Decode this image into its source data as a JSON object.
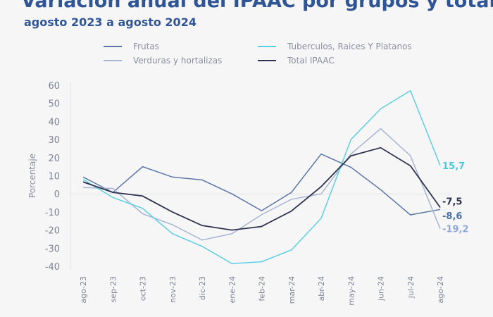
{
  "chart_data": {
    "type": "line",
    "title": "Variación anual del IPAAC por grupos y total",
    "subtitle": "agosto 2023 a agosto 2024",
    "ylabel": "Porcentaje",
    "xlabel": "",
    "ylim": [
      -40,
      60
    ],
    "yticks": [
      60,
      50,
      40,
      30,
      20,
      10,
      0,
      -10,
      -20,
      -30,
      -40
    ],
    "categories": [
      "ago-23",
      "sep-23",
      "oct-23",
      "nov-23",
      "dic-23",
      "ene-24",
      "feb-24",
      "mar-24",
      "abr-24",
      "may-24",
      "jun-24",
      "jul-24",
      "ago-24"
    ],
    "legend_position": "top",
    "grid": false,
    "series": [
      {
        "name": "Frutas",
        "color": "#5b77a6",
        "values": [
          9.3,
          0.8,
          15,
          9.3,
          7.7,
          0,
          -9.3,
          0.8,
          22,
          14.7,
          2.3,
          -11.6,
          -8.6
        ],
        "end_label": "-8,6",
        "label_color": "#4a6fa5"
      },
      {
        "name": "Verduras y hortalizas",
        "color": "#a6b5d3",
        "values": [
          3.5,
          3,
          -11,
          -17,
          -25.5,
          -22,
          -11.5,
          -3,
          0,
          22,
          36,
          21,
          -19.2
        ],
        "end_label": "-19,2",
        "label_color": "#8fa8d8"
      },
      {
        "name": "Tuberculos, Raices Y Platanos",
        "color": "#5ccfe3",
        "values": [
          8,
          -2,
          -8,
          -22,
          -29,
          -38.5,
          -37.5,
          -31,
          -13.5,
          30,
          47,
          57,
          15.7
        ],
        "end_label": "15,7",
        "label_color": "#4cc6dd"
      },
      {
        "name": "Total IPAAC",
        "color": "#2e3450",
        "values": [
          6.6,
          0.8,
          -1.2,
          -10,
          -17.5,
          -20,
          -18,
          -9.5,
          4,
          21,
          25.5,
          15.5,
          -7.5
        ],
        "end_label": "-7,5",
        "label_color": "#2e3450"
      }
    ]
  }
}
